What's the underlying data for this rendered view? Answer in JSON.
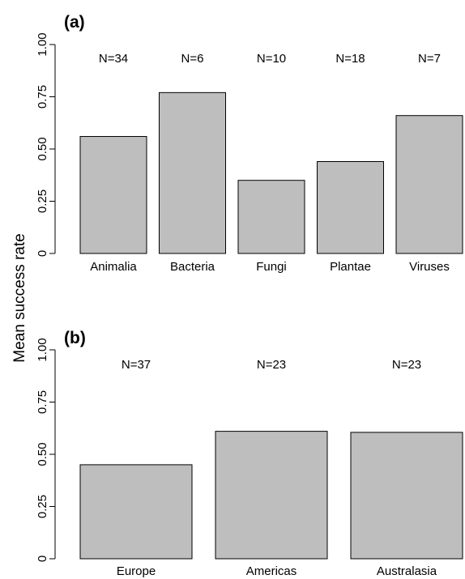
{
  "ylabel": "Mean success rate",
  "colors": {
    "bar_fill": "#bebebe",
    "bar_stroke": "#000000",
    "background": "#ffffff"
  },
  "chart_data": [
    {
      "type": "bar",
      "panel_label": "(a)",
      "categories": [
        "Animalia",
        "Bacteria",
        "Fungi",
        "Plantae",
        "Viruses"
      ],
      "values": [
        0.56,
        0.77,
        0.35,
        0.44,
        0.66
      ],
      "n_labels": [
        "N=34",
        "N=6",
        "N=10",
        "N=18",
        "N=7"
      ],
      "ylim": [
        0,
        1
      ],
      "yticks": [
        "0",
        "0.25",
        "0.50",
        "0.75",
        "1.00"
      ],
      "grid": false
    },
    {
      "type": "bar",
      "panel_label": "(b)",
      "categories": [
        "Europe",
        "Americas",
        "Australasia"
      ],
      "values": [
        0.45,
        0.61,
        0.605
      ],
      "n_labels": [
        "N=37",
        "N=23",
        "N=23"
      ],
      "ylim": [
        0,
        1
      ],
      "yticks": [
        "0",
        "0.25",
        "0.50",
        "0.75",
        "1.00"
      ],
      "grid": false
    }
  ]
}
